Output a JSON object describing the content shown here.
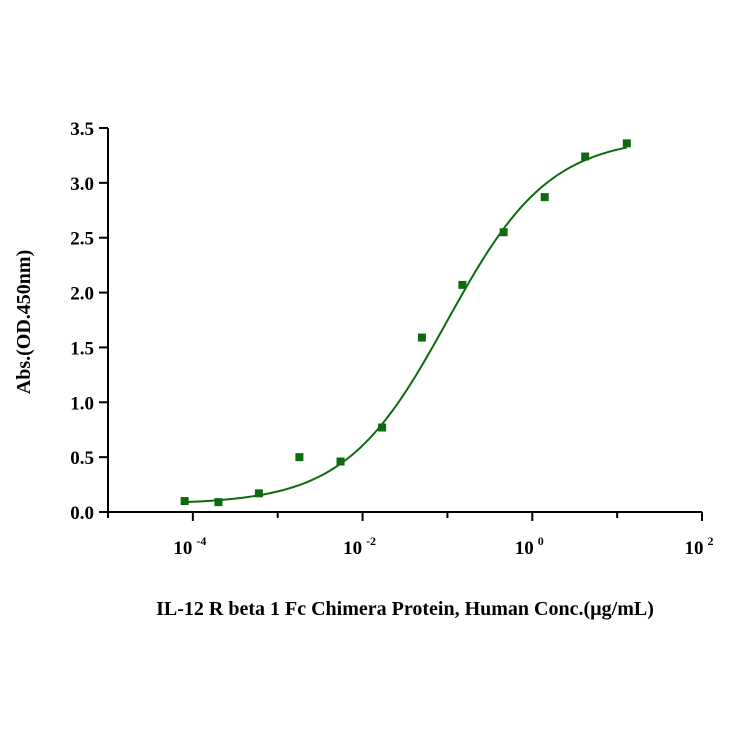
{
  "chart_data": {
    "type": "scatter",
    "title": "",
    "xlabel": "IL-12 R beta 1 Fc Chimera Protein, Human  Conc.(µg/mL)",
    "ylabel": "Abs.(OD.450nm)",
    "x_scale": "log10",
    "xlim": [
      -5,
      2
    ],
    "ylim": [
      0,
      3.5
    ],
    "x_ticks": [
      {
        "base": "10",
        "exp": "-4",
        "value": -4
      },
      {
        "base": "10",
        "exp": "-2",
        "value": -2
      },
      {
        "base": "10",
        "exp": "0",
        "value": 0
      },
      {
        "base": "10",
        "exp": "2",
        "value": 2
      }
    ],
    "y_ticks": [
      "0.0",
      "0.5",
      "1.0",
      "1.5",
      "2.0",
      "2.5",
      "3.0",
      "3.5"
    ],
    "series": [
      {
        "name": "Abs.(OD.450nm)",
        "marker": "square",
        "color": "#0e6a0e",
        "x": [
          8e-05,
          0.0002,
          0.0006,
          0.0018,
          0.0055,
          0.017,
          0.05,
          0.15,
          0.46,
          1.4,
          4.2,
          13
        ],
        "y": [
          0.1,
          0.09,
          0.17,
          0.5,
          0.46,
          0.77,
          1.59,
          2.07,
          2.55,
          2.87,
          3.24,
          3.36
        ]
      }
    ],
    "fit": {
      "model": "4PL",
      "color": "#0e6a0e",
      "bottom": 0.07,
      "top": 3.42,
      "ec50": 0.1,
      "hill": 0.72
    }
  }
}
